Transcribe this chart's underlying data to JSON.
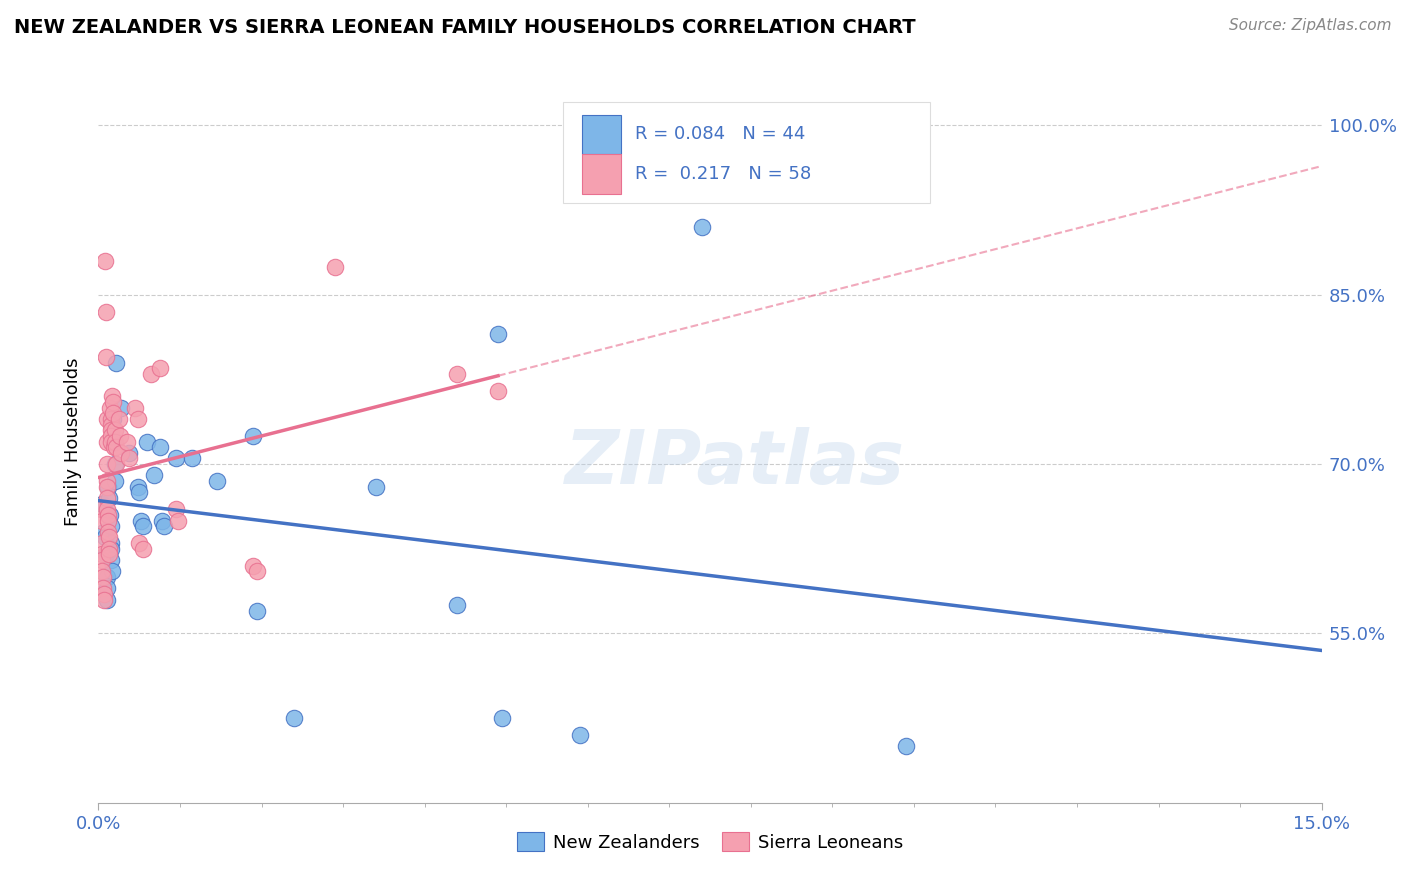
{
  "title": "NEW ZEALANDER VS SIERRA LEONEAN FAMILY HOUSEHOLDS CORRELATION CHART",
  "source": "Source: ZipAtlas.com",
  "ylabel": "Family Households",
  "legend_labels": [
    "New Zealanders",
    "Sierra Leoneans"
  ],
  "r_nz": 0.084,
  "n_nz": 44,
  "r_sl": 0.217,
  "n_sl": 58,
  "xmin": 0.0,
  "xmax": 15.0,
  "ymin": 40.0,
  "ymax": 104.0,
  "yticks": [
    55.0,
    70.0,
    85.0,
    100.0
  ],
  "color_nz": "#7EB6E8",
  "color_sl": "#F5A0B0",
  "color_nz_line": "#4472C4",
  "color_sl_line": "#E87090",
  "watermark": "ZIPatlas",
  "nz_scatter": [
    [
      0.05,
      66.5
    ],
    [
      0.07,
      64.0
    ],
    [
      0.08,
      63.5
    ],
    [
      0.09,
      62.0
    ],
    [
      0.1,
      60.0
    ],
    [
      0.1,
      59.0
    ],
    [
      0.1,
      58.0
    ],
    [
      0.12,
      68.0
    ],
    [
      0.13,
      67.0
    ],
    [
      0.14,
      65.5
    ],
    [
      0.15,
      64.5
    ],
    [
      0.15,
      63.0
    ],
    [
      0.15,
      62.5
    ],
    [
      0.16,
      61.5
    ],
    [
      0.17,
      60.5
    ],
    [
      0.18,
      74.0
    ],
    [
      0.19,
      72.0
    ],
    [
      0.2,
      70.0
    ],
    [
      0.2,
      68.5
    ],
    [
      0.22,
      79.0
    ],
    [
      0.28,
      75.0
    ],
    [
      0.38,
      71.0
    ],
    [
      0.48,
      68.0
    ],
    [
      0.5,
      67.5
    ],
    [
      0.52,
      65.0
    ],
    [
      0.55,
      64.5
    ],
    [
      0.6,
      72.0
    ],
    [
      0.68,
      69.0
    ],
    [
      0.75,
      71.5
    ],
    [
      0.78,
      65.0
    ],
    [
      0.8,
      64.5
    ],
    [
      0.95,
      70.5
    ],
    [
      1.15,
      70.5
    ],
    [
      1.45,
      68.5
    ],
    [
      1.9,
      72.5
    ],
    [
      1.95,
      57.0
    ],
    [
      2.4,
      47.5
    ],
    [
      3.4,
      68.0
    ],
    [
      4.4,
      57.5
    ],
    [
      4.9,
      81.5
    ],
    [
      4.95,
      47.5
    ],
    [
      5.9,
      46.0
    ],
    [
      7.4,
      91.0
    ],
    [
      9.9,
      45.0
    ]
  ],
  "sl_scatter": [
    [
      0.03,
      66.0
    ],
    [
      0.04,
      65.0
    ],
    [
      0.04,
      63.0
    ],
    [
      0.05,
      62.0
    ],
    [
      0.05,
      61.5
    ],
    [
      0.05,
      60.5
    ],
    [
      0.06,
      60.0
    ],
    [
      0.06,
      59.0
    ],
    [
      0.07,
      58.5
    ],
    [
      0.07,
      58.0
    ],
    [
      0.08,
      88.0
    ],
    [
      0.09,
      83.5
    ],
    [
      0.09,
      79.5
    ],
    [
      0.1,
      74.0
    ],
    [
      0.1,
      72.0
    ],
    [
      0.1,
      70.0
    ],
    [
      0.1,
      68.5
    ],
    [
      0.11,
      68.0
    ],
    [
      0.11,
      67.0
    ],
    [
      0.11,
      66.0
    ],
    [
      0.12,
      65.5
    ],
    [
      0.12,
      65.0
    ],
    [
      0.12,
      64.0
    ],
    [
      0.13,
      63.5
    ],
    [
      0.13,
      62.5
    ],
    [
      0.13,
      62.0
    ],
    [
      0.14,
      75.0
    ],
    [
      0.15,
      74.0
    ],
    [
      0.15,
      73.5
    ],
    [
      0.15,
      73.0
    ],
    [
      0.16,
      72.5
    ],
    [
      0.16,
      72.0
    ],
    [
      0.17,
      76.0
    ],
    [
      0.18,
      75.5
    ],
    [
      0.18,
      74.5
    ],
    [
      0.19,
      71.5
    ],
    [
      0.2,
      73.0
    ],
    [
      0.2,
      72.0
    ],
    [
      0.21,
      71.5
    ],
    [
      0.22,
      70.0
    ],
    [
      0.25,
      74.0
    ],
    [
      0.26,
      72.5
    ],
    [
      0.28,
      71.0
    ],
    [
      0.35,
      72.0
    ],
    [
      0.38,
      70.5
    ],
    [
      0.45,
      75.0
    ],
    [
      0.48,
      74.0
    ],
    [
      0.5,
      63.0
    ],
    [
      0.55,
      62.5
    ],
    [
      0.65,
      78.0
    ],
    [
      0.75,
      78.5
    ],
    [
      0.95,
      66.0
    ],
    [
      0.98,
      65.0
    ],
    [
      1.9,
      61.0
    ],
    [
      1.95,
      60.5
    ],
    [
      2.9,
      87.5
    ],
    [
      4.4,
      78.0
    ],
    [
      4.9,
      76.5
    ]
  ]
}
